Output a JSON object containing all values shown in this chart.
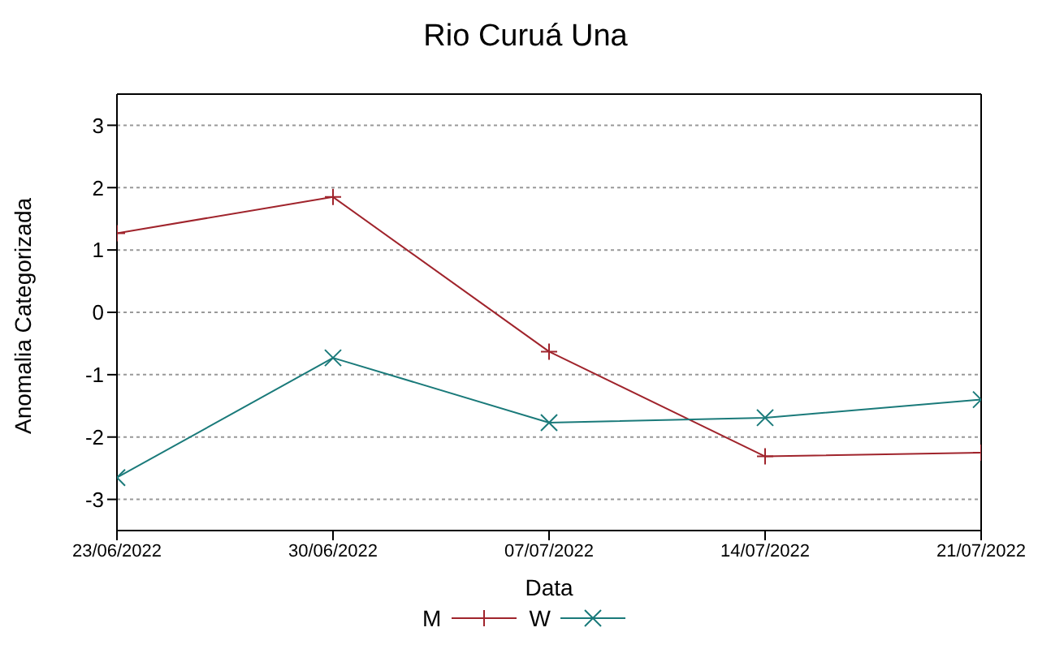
{
  "chart_data": {
    "type": "line",
    "title": "Rio Curuá Una",
    "xlabel": "Data",
    "ylabel": "Anomalia Categorizada",
    "x": [
      "2022-06-23",
      "2022-06-30",
      "2022-07-07",
      "2022-07-14",
      "2022-07-21"
    ],
    "series": [
      {
        "name": "M",
        "color": "#a0242c",
        "marker": "cross",
        "values": [
          1.27,
          1.85,
          -0.63,
          -2.31,
          -2.25
        ]
      },
      {
        "name": "W",
        "color": "#1a7a7a",
        "marker": "x",
        "values": [
          -2.65,
          -0.73,
          -1.77,
          -1.69,
          -1.4
        ]
      }
    ],
    "xlim": [
      "2022-06-23",
      "2022-07-21"
    ],
    "xticks": [
      {
        "value": "2022-06-23",
        "label": "23/06/2022"
      },
      {
        "value": "2022-06-30",
        "label": "30/06/2022"
      },
      {
        "value": "2022-07-07",
        "label": "07/07/2022"
      },
      {
        "value": "2022-07-14",
        "label": "14/07/2022"
      },
      {
        "value": "2022-07-21",
        "label": "21/07/2022"
      }
    ],
    "ylim": [
      -3.5,
      3.5
    ],
    "yticks": [
      -3,
      -2,
      -1,
      0,
      1,
      2,
      3
    ],
    "grid": "y",
    "legend": "bottom",
    "line_style": "solid"
  }
}
